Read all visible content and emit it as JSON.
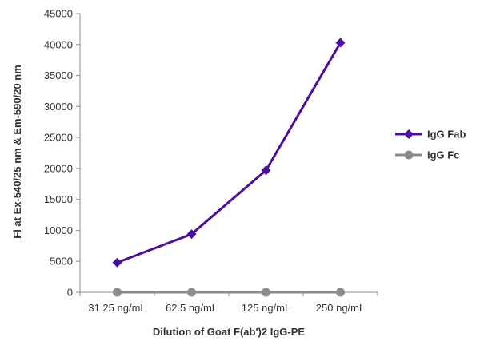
{
  "chart_data": {
    "type": "line",
    "title": "",
    "xlabel": "Dilution of Goat F(ab')2 IgG-PE",
    "ylabel": "Fl at Ex-540/25 nm & Em-590/20 nm",
    "categories": [
      "31.25 ng/mL",
      "62.5 ng/mL",
      "125 ng/mL",
      "250 ng/mL"
    ],
    "ylim": [
      0,
      45000
    ],
    "yticks": [
      0,
      5000,
      10000,
      15000,
      20000,
      25000,
      30000,
      35000,
      40000,
      45000
    ],
    "grid": false,
    "legend_position": "right",
    "series": [
      {
        "name": "IgG Fab",
        "values": [
          4800,
          9400,
          19700,
          40300
        ],
        "color": "#4B0FA0",
        "marker": "diamond"
      },
      {
        "name": "IgG Fc",
        "values": [
          0,
          0,
          0,
          0
        ],
        "color": "#8C8C8C",
        "marker": "circle"
      }
    ]
  }
}
